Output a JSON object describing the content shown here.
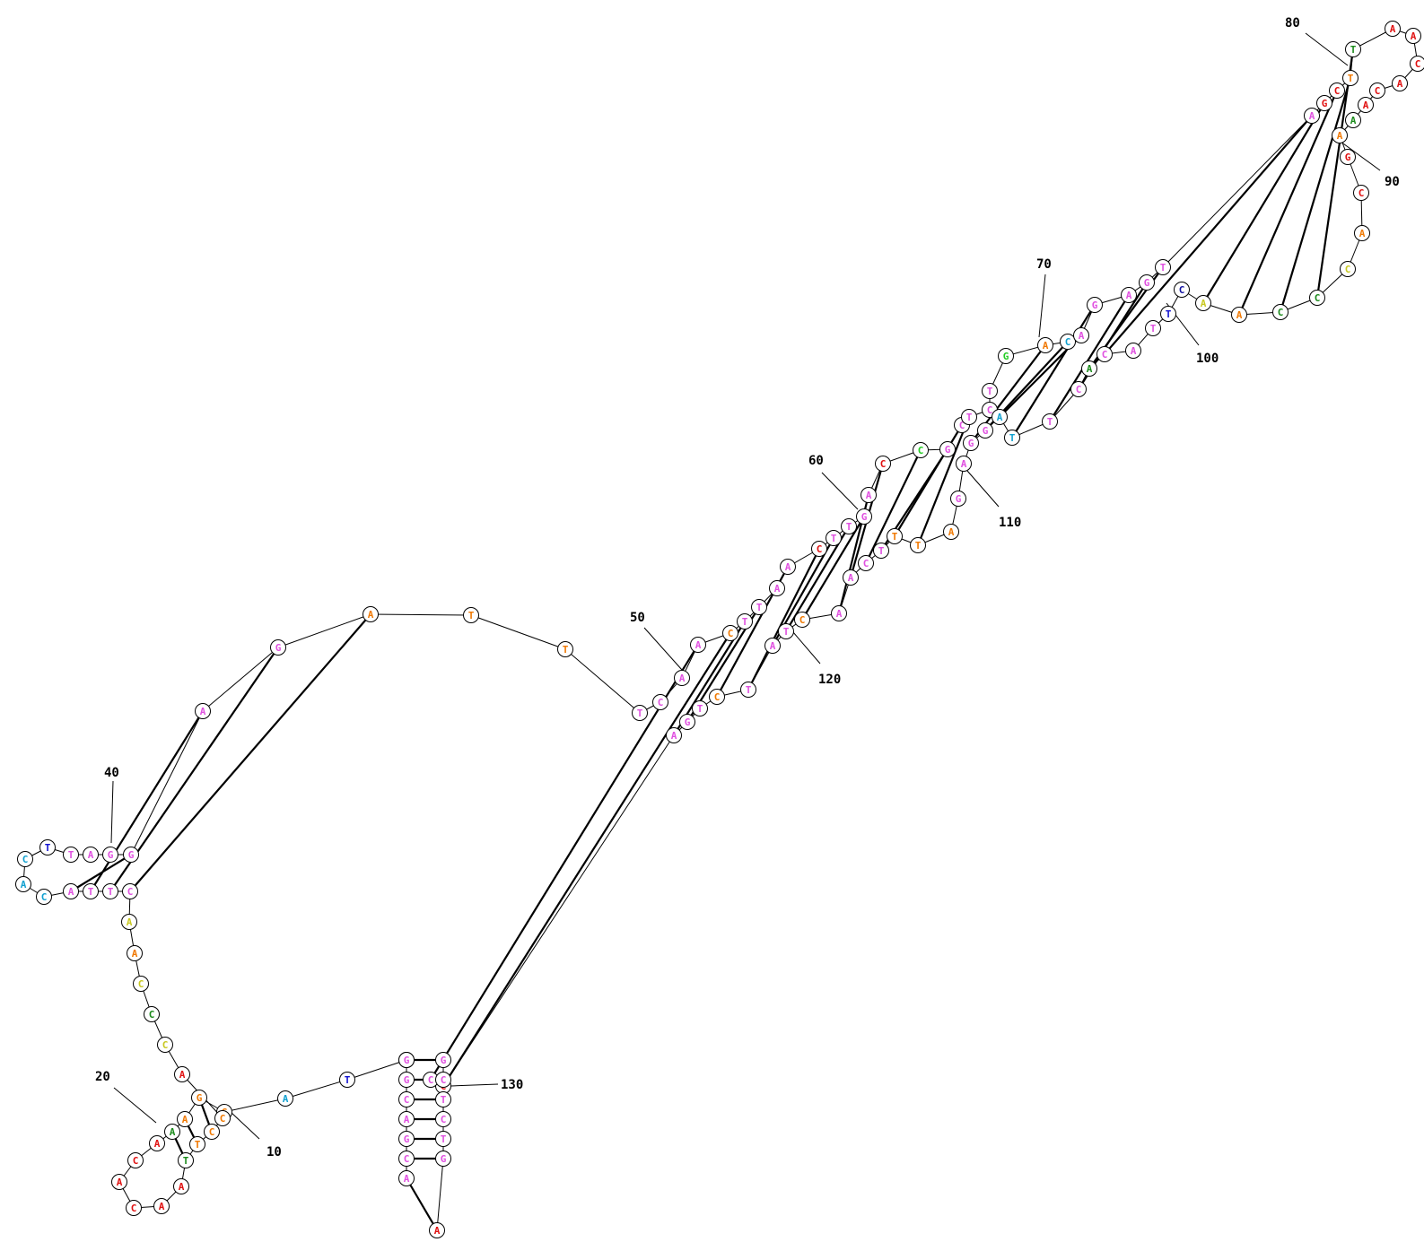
{
  "colors": {
    "A": "#e01010",
    "C": "#e01010",
    "G": "#e01010",
    "T": "#e01010",
    "pink": "#e050e0",
    "orange": "#f07800",
    "red": "#e01010",
    "yellow": "#c8c820",
    "green": "#1a8a1a",
    "lime": "#22cc22",
    "cyan": "#10a0d0",
    "blue": "#1010d0",
    "navy": "#1010a0"
  },
  "nucleotides": [
    {
      "l": "A",
      "c": "pink"
    },
    {
      "l": "C",
      "c": "pink"
    },
    {
      "l": "G",
      "c": "pink"
    },
    {
      "l": "A",
      "c": "pink"
    },
    {
      "l": "C",
      "c": "pink"
    },
    {
      "l": "G",
      "c": "pink"
    },
    {
      "l": "T",
      "c": "pink"
    },
    {
      "l": "G",
      "c": "pink"
    },
    {
      "l": "T",
      "c": "blue"
    },
    {
      "l": "A",
      "c": "cyan"
    },
    {
      "l": "G",
      "c": "orange"
    },
    {
      "l": "G",
      "c": "orange"
    },
    {
      "l": "A",
      "c": "orange"
    },
    {
      "l": "A",
      "c": "green"
    },
    {
      "l": "A",
      "c": "red"
    },
    {
      "l": "C",
      "c": "red"
    },
    {
      "l": "A",
      "c": "red"
    },
    {
      "l": "C",
      "c": "red"
    },
    {
      "l": "A",
      "c": "red"
    },
    {
      "l": "A",
      "c": "red"
    },
    {
      "l": "T",
      "c": "green"
    },
    {
      "l": "T",
      "c": "orange"
    },
    {
      "l": "C",
      "c": "orange"
    },
    {
      "l": "C",
      "c": "orange"
    },
    {
      "l": "A",
      "c": "red"
    },
    {
      "l": "C",
      "c": "yellow"
    },
    {
      "l": "C",
      "c": "green"
    },
    {
      "l": "C",
      "c": "yellow"
    },
    {
      "l": "A",
      "c": "orange"
    },
    {
      "l": "A",
      "c": "yellow"
    },
    {
      "l": "C",
      "c": "pink"
    },
    {
      "l": "T",
      "c": "pink"
    },
    {
      "l": "T",
      "c": "pink"
    },
    {
      "l": "A",
      "c": "pink"
    },
    {
      "l": "C",
      "c": "cyan"
    },
    {
      "l": "A",
      "c": "cyan"
    },
    {
      "l": "C",
      "c": "cyan"
    },
    {
      "l": "T",
      "c": "blue"
    },
    {
      "l": "T",
      "c": "pink"
    },
    {
      "l": "A",
      "c": "pink"
    },
    {
      "l": "G",
      "c": "pink"
    },
    {
      "l": "G",
      "c": "pink"
    },
    {
      "l": "A",
      "c": "pink"
    },
    {
      "l": "G",
      "c": "pink"
    },
    {
      "l": "A",
      "c": "orange"
    },
    {
      "l": "T",
      "c": "orange"
    },
    {
      "l": "T",
      "c": "orange"
    },
    {
      "l": "T",
      "c": "pink"
    },
    {
      "l": "C",
      "c": "pink"
    },
    {
      "l": "A",
      "c": "pink"
    },
    {
      "l": "A",
      "c": "pink"
    },
    {
      "l": "C",
      "c": "orange"
    },
    {
      "l": "T",
      "c": "pink"
    },
    {
      "l": "T",
      "c": "pink"
    },
    {
      "l": "A",
      "c": "pink"
    },
    {
      "l": "A",
      "c": "pink"
    },
    {
      "l": "C",
      "c": "red"
    },
    {
      "l": "T",
      "c": "pink"
    },
    {
      "l": "T",
      "c": "pink"
    },
    {
      "l": "G",
      "c": "pink"
    },
    {
      "l": "A",
      "c": "pink"
    },
    {
      "l": "C",
      "c": "red"
    },
    {
      "l": "C",
      "c": "lime"
    },
    {
      "l": "G",
      "c": "pink"
    },
    {
      "l": "C",
      "c": "pink"
    },
    {
      "l": "T",
      "c": "pink"
    },
    {
      "l": "C",
      "c": "pink"
    },
    {
      "l": "T",
      "c": "pink"
    },
    {
      "l": "G",
      "c": "lime"
    },
    {
      "l": "A",
      "c": "orange"
    },
    {
      "l": "C",
      "c": "cyan"
    },
    {
      "l": "A",
      "c": "pink"
    },
    {
      "l": "G",
      "c": "pink"
    },
    {
      "l": "A",
      "c": "pink"
    },
    {
      "l": "G",
      "c": "pink"
    },
    {
      "l": "T",
      "c": "pink"
    },
    {
      "l": "A",
      "c": "pink"
    },
    {
      "l": "G",
      "c": "red"
    },
    {
      "l": "C",
      "c": "red"
    },
    {
      "l": "T",
      "c": "orange"
    },
    {
      "l": "T",
      "c": "green"
    },
    {
      "l": "A",
      "c": "red"
    },
    {
      "l": "A",
      "c": "red"
    },
    {
      "l": "C",
      "c": "red"
    },
    {
      "l": "A",
      "c": "red"
    },
    {
      "l": "C",
      "c": "red"
    },
    {
      "l": "A",
      "c": "red"
    },
    {
      "l": "A",
      "c": "green"
    },
    {
      "l": "A",
      "c": "orange"
    },
    {
      "l": "G",
      "c": "red"
    },
    {
      "l": "C",
      "c": "red"
    },
    {
      "l": "A",
      "c": "orange"
    },
    {
      "l": "C",
      "c": "yellow"
    },
    {
      "l": "C",
      "c": "green"
    },
    {
      "l": "C",
      "c": "green"
    },
    {
      "l": "A",
      "c": "orange"
    },
    {
      "l": "A",
      "c": "yellow"
    },
    {
      "l": "C",
      "c": "navy"
    },
    {
      "l": "T",
      "c": "blue"
    },
    {
      "l": "T",
      "c": "pink"
    },
    {
      "l": "A",
      "c": "pink"
    },
    {
      "l": "C",
      "c": "pink"
    },
    {
      "l": "A",
      "c": "green"
    },
    {
      "l": "C",
      "c": "pink"
    },
    {
      "l": "T",
      "c": "pink"
    },
    {
      "l": "T",
      "c": "cyan"
    },
    {
      "l": "A",
      "c": "cyan"
    },
    {
      "l": "G",
      "c": "pink"
    },
    {
      "l": "G",
      "c": "pink"
    },
    {
      "l": "A",
      "c": "pink"
    },
    {
      "l": "G",
      "c": "pink"
    },
    {
      "l": "A",
      "c": "orange"
    },
    {
      "l": "T",
      "c": "orange"
    },
    {
      "l": "T",
      "c": "orange"
    },
    {
      "l": "T",
      "c": "pink"
    },
    {
      "l": "C",
      "c": "pink"
    },
    {
      "l": "A",
      "c": "pink"
    },
    {
      "l": "A",
      "c": "pink"
    },
    {
      "l": "C",
      "c": "orange"
    },
    {
      "l": "T",
      "c": "pink"
    },
    {
      "l": "A",
      "c": "pink"
    },
    {
      "l": "T",
      "c": "pink"
    },
    {
      "l": "C",
      "c": "orange"
    },
    {
      "l": "T",
      "c": "pink"
    },
    {
      "l": "G",
      "c": "pink"
    },
    {
      "l": "A",
      "c": "pink"
    },
    {
      "l": "C",
      "c": "red"
    },
    {
      "l": "C",
      "c": "pink"
    },
    {
      "l": "G",
      "c": "pink"
    },
    {
      "l": "C",
      "c": "pink"
    },
    {
      "l": "T",
      "c": "pink"
    },
    {
      "l": "C",
      "c": "pink"
    },
    {
      "l": "T",
      "c": "pink"
    },
    {
      "l": "G",
      "c": "pink"
    },
    {
      "l": "A",
      "c": "red"
    }
  ],
  "pairs": [
    [
      1,
      135
    ],
    [
      2,
      134
    ],
    [
      3,
      133
    ],
    [
      4,
      132
    ],
    [
      5,
      131
    ],
    [
      6,
      130
    ],
    [
      7,
      129
    ],
    [
      11,
      24
    ],
    [
      12,
      23
    ],
    [
      13,
      22
    ],
    [
      14,
      21
    ],
    [
      31,
      45
    ],
    [
      32,
      44
    ],
    [
      33,
      43
    ],
    [
      34,
      42
    ],
    [
      51,
      128
    ],
    [
      52,
      127
    ],
    [
      53,
      126
    ],
    [
      54,
      125
    ],
    [
      56,
      123
    ],
    [
      57,
      122
    ],
    [
      58,
      121
    ],
    [
      59,
      120
    ],
    [
      60,
      119
    ],
    [
      61,
      118
    ],
    [
      62,
      117
    ],
    [
      63,
      116
    ],
    [
      64,
      115
    ],
    [
      65,
      114
    ],
    [
      66,
      113
    ],
    [
      70,
      109
    ],
    [
      71,
      108
    ],
    [
      72,
      107
    ],
    [
      73,
      106
    ],
    [
      74,
      105
    ],
    [
      75,
      104
    ],
    [
      76,
      103
    ],
    [
      77,
      102
    ],
    [
      78,
      97
    ],
    [
      79,
      96
    ],
    [
      80,
      95
    ],
    [
      81,
      94
    ]
  ],
  "labels": [
    "10",
    "20",
    "40",
    "50",
    "60",
    "70",
    "80",
    "90",
    "100",
    "110",
    "120",
    "130"
  ]
}
